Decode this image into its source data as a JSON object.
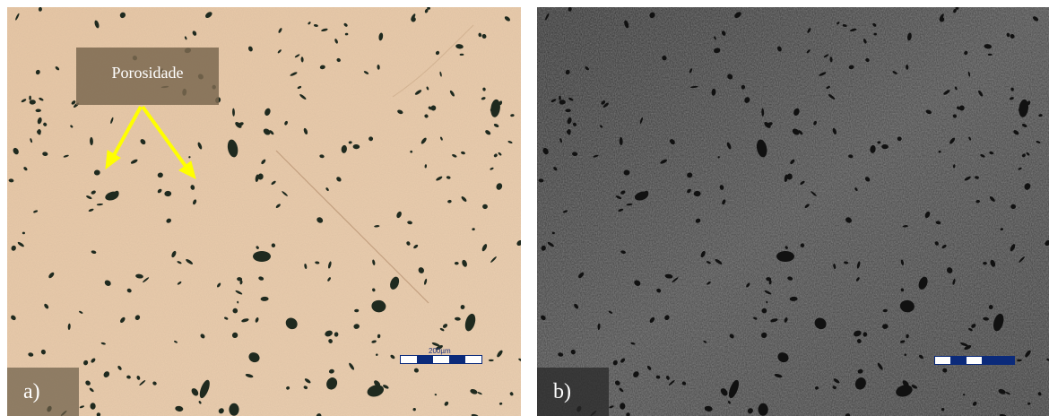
{
  "panels": [
    {
      "id": "a",
      "label": "a)",
      "annotation": "Porosidade",
      "scale_bar_text": "200µm",
      "colors": {
        "matrix": "#e6c3a0",
        "pores": "#1f2a1f",
        "arrow": "#ffff00"
      }
    },
    {
      "id": "b",
      "label": "b)",
      "colors": {
        "matrix": "#3c3c3c",
        "pores": "#111111",
        "scale_bar": "#0b2a7a"
      }
    }
  ]
}
